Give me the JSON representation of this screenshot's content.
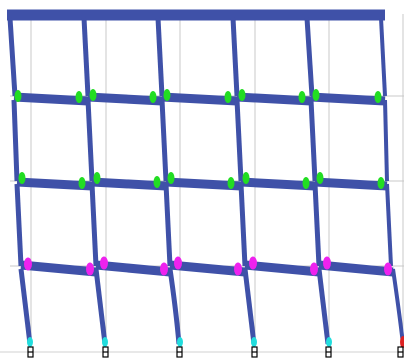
{
  "view": {
    "background": "#ffffff",
    "grid_color": "#c8c8c8",
    "member_color": "#3f51a8",
    "ground_color": "#d0d0d0"
  },
  "frame": {
    "bays": 5,
    "stories": 4,
    "deformed": true
  },
  "hinge_legend": [
    {
      "level": "IO",
      "color": "#22dd22",
      "floors": [
        3,
        4
      ]
    },
    {
      "level": "LS",
      "color": "#ee22ee",
      "floors": [
        1
      ]
    },
    {
      "level": "CP",
      "color": "#22dddd",
      "floors": [
        0
      ]
    },
    {
      "level": "C",
      "color": "#dd2222",
      "floors": []
    }
  ],
  "support_colors": {
    "pin_symbol": "#000000",
    "base_hinge": "#22dddd",
    "collapse_hinge": "#dd2222"
  }
}
